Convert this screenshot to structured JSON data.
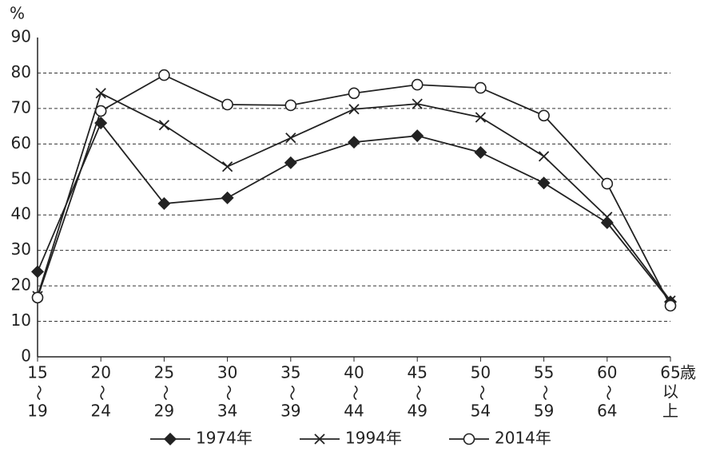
{
  "chart_data": {
    "type": "line",
    "y_label": "%",
    "x_unit": "歳",
    "categories": [
      [
        "15",
        "〜",
        "19"
      ],
      [
        "20",
        "〜",
        "24"
      ],
      [
        "25",
        "〜",
        "29"
      ],
      [
        "30",
        "〜",
        "34"
      ],
      [
        "35",
        "〜",
        "39"
      ],
      [
        "40",
        "〜",
        "44"
      ],
      [
        "45",
        "〜",
        "49"
      ],
      [
        "50",
        "〜",
        "54"
      ],
      [
        "55",
        "〜",
        "59"
      ],
      [
        "60",
        "〜",
        "64"
      ],
      [
        "65",
        "以",
        "上"
      ]
    ],
    "series": [
      {
        "name": "1974年",
        "color": "#222222",
        "marker": "diamond",
        "values": [
          24,
          65.9,
          43.2,
          44.8,
          54.7,
          60.5,
          62.3,
          57.6,
          49,
          37.8,
          15.5
        ]
      },
      {
        "name": "1994年",
        "color": "#222222",
        "marker": "x",
        "values": [
          17.1,
          74.3,
          65.3,
          53.6,
          61.7,
          69.8,
          71.3,
          67.5,
          56.5,
          39.4,
          15.8
        ]
      },
      {
        "name": "2014年",
        "color": "#222222",
        "marker": "circle",
        "values": [
          16.7,
          69.3,
          79.4,
          71.1,
          70.9,
          74.3,
          76.7,
          75.8,
          68,
          48.8,
          14.4
        ]
      }
    ],
    "ylim": [
      0,
      90
    ],
    "yticks": [
      0,
      10,
      20,
      30,
      40,
      50,
      60,
      70,
      80,
      90
    ],
    "grid": true,
    "legend": "bottom"
  }
}
